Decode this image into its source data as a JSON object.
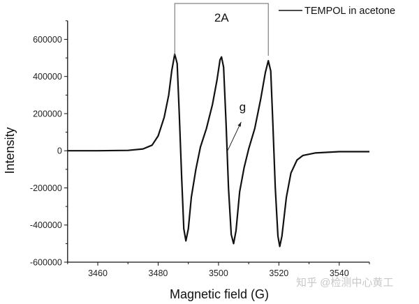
{
  "chart_data": {
    "type": "line",
    "title": "",
    "xlabel": "Magnetic field (G)",
    "ylabel": "Intensity",
    "xlim": [
      3450,
      3550
    ],
    "ylim": [
      -600000,
      700000
    ],
    "xticks": [
      3460,
      3480,
      3500,
      3520,
      3540
    ],
    "xtick_labels": [
      "3460",
      "3480",
      "3500",
      "3520",
      "3540"
    ],
    "yticks": [
      -600000,
      -400000,
      -200000,
      0,
      200000,
      400000,
      600000
    ],
    "ytick_labels": [
      "-600000",
      "-400000",
      "-200000",
      "0",
      "200000",
      "400000",
      "600000"
    ],
    "grid": false,
    "legend": {
      "position": "top-right",
      "entries": [
        "TEMPOL in acetone"
      ]
    },
    "annotations": {
      "bracket_label": "2A",
      "bracket_span": [
        3485.5,
        3516.5
      ],
      "arrow_label": "g",
      "arrow_from": [
        3503,
        0
      ],
      "arrow_to": [
        3507.5,
        155000
      ]
    },
    "series": [
      {
        "name": "TEMPOL in acetone",
        "color": "#111111",
        "x": [
          3450,
          3460,
          3470,
          3475,
          3478,
          3480,
          3482,
          3483.5,
          3484.5,
          3485.5,
          3486.3,
          3487,
          3487.8,
          3488.5,
          3489.2,
          3490,
          3491,
          3492.5,
          3494,
          3496,
          3498,
          3499.5,
          3500.5,
          3501,
          3501.7,
          3502.5,
          3503.3,
          3504.2,
          3505,
          3505.8,
          3507,
          3508.5,
          3510,
          3512,
          3514,
          3515.5,
          3516.5,
          3517.3,
          3518,
          3518.8,
          3519.7,
          3520.3,
          3521,
          3522.5,
          3524,
          3526,
          3528,
          3532,
          3540,
          3550
        ],
        "y": [
          0,
          0,
          2000,
          10000,
          30000,
          80000,
          180000,
          300000,
          430000,
          520000,
          470000,
          200000,
          -150000,
          -420000,
          -485000,
          -420000,
          -250000,
          -100000,
          20000,
          120000,
          250000,
          380000,
          490000,
          505000,
          450000,
          150000,
          -200000,
          -450000,
          -500000,
          -430000,
          -220000,
          -90000,
          10000,
          120000,
          280000,
          420000,
          485000,
          430000,
          150000,
          -200000,
          -460000,
          -515000,
          -460000,
          -250000,
          -120000,
          -50000,
          -25000,
          -12000,
          -5000,
          -5000
        ]
      }
    ]
  },
  "watermark": "知乎 @检测中心黄工"
}
